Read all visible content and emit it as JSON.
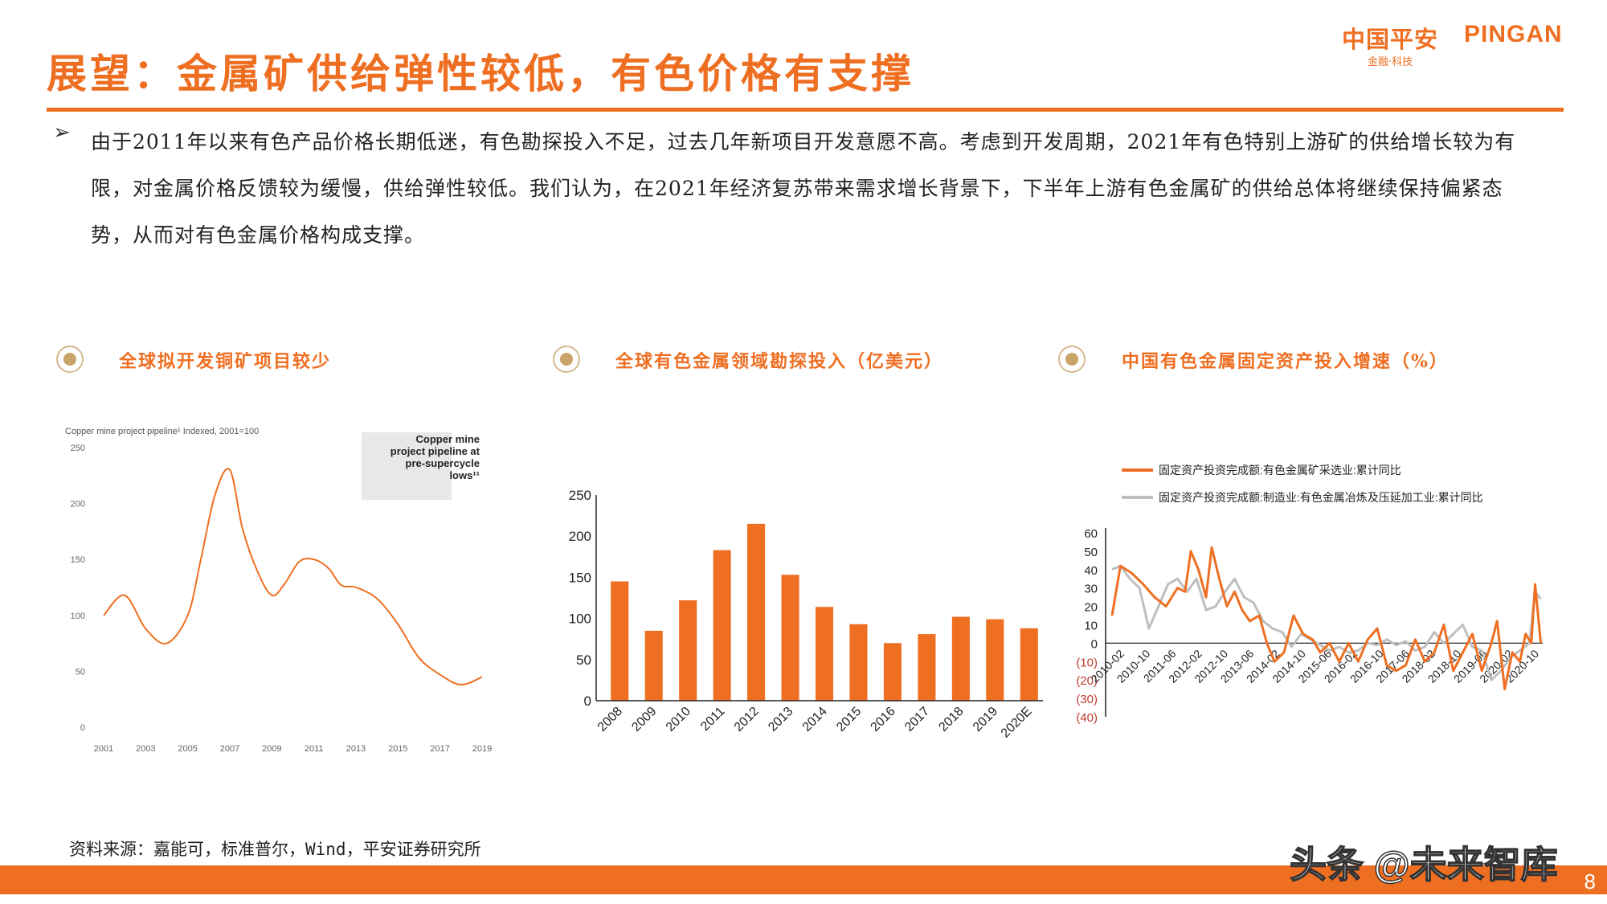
{
  "header": {
    "title": "展望：金属矿供给弹性较低，有色价格有支撑",
    "logo_cn": "中国平安",
    "logo_en": "PINGAN",
    "logo_sub": "金融·科技"
  },
  "bullet": {
    "marker": "➢",
    "text": "由于2011年以来有色产品价格长期低迷，有色勘探投入不足，过去几年新项目开发意愿不高。考虑到开发周期，2021年有色特别上游矿的供给增长较为有限，对金属价格反馈较为缓慢，供给弹性较低。我们认为，在2021年经济复苏带来需求增长背景下，下半年上游有色金属矿的供给总体将继续保持偏紧态势，从而对有色金属价格构成支撑。"
  },
  "sections": [
    {
      "title": "全球拟开发铜矿项目较少"
    },
    {
      "title": "全球有色金属领域勘探投入（亿美元）"
    },
    {
      "title": "中国有色金属固定资产投入增速（%）"
    }
  ],
  "source": "资料来源：嘉能可，标准普尔，Wind，平安证券研究所",
  "page_number": "8",
  "watermark": "头条 @未来智库",
  "colors": {
    "accent": "#ef6f22",
    "gray_series": "#bfbfbf"
  },
  "chart_data": [
    {
      "type": "line",
      "title": "Copper mine project pipeline¹ Indexed, 2001=100",
      "annotation": [
        "Copper mine",
        "project pipeline at",
        "pre-supercycle",
        "lows¹¹"
      ],
      "x_ticks": [
        "2001",
        "2003",
        "2005",
        "2007",
        "2009",
        "2011",
        "2013",
        "2015",
        "2017",
        "2019"
      ],
      "y_ticks": [
        "0",
        "50",
        "100",
        "150",
        "200",
        "250"
      ],
      "ylim": [
        0,
        250
      ],
      "xlim": [
        2001,
        2019
      ],
      "series": [
        {
          "x": [
            2001,
            2002,
            2003,
            2004,
            2005,
            2005.6,
            2006.3,
            2007,
            2007.6,
            2008.3,
            2009,
            2009.6,
            2010.3,
            2011,
            2011.7,
            2012.3,
            2013,
            2014,
            2015,
            2016,
            2017,
            2018,
            2019
          ],
          "y": [
            100,
            118,
            88,
            75,
            100,
            148,
            208,
            230,
            178,
            140,
            118,
            128,
            148,
            150,
            142,
            127,
            125,
            115,
            92,
            62,
            47,
            38,
            45
          ]
        }
      ]
    },
    {
      "type": "bar",
      "categories": [
        "2008",
        "2009",
        "2010",
        "2011",
        "2012",
        "2013",
        "2014",
        "2015",
        "2016",
        "2017",
        "2018",
        "2019",
        "2020E"
      ],
      "values": [
        145,
        85,
        122,
        183,
        215,
        153,
        114,
        93,
        70,
        81,
        102,
        99,
        88
      ],
      "ylim": [
        0,
        250
      ],
      "y_ticks": [
        "0",
        "50",
        "100",
        "150",
        "200",
        "250"
      ]
    },
    {
      "type": "line",
      "ylim": [
        -40,
        60
      ],
      "y_ticks": [
        "60",
        "50",
        "40",
        "30",
        "20",
        "10",
        "0",
        "(10)",
        "(20)",
        "(30)",
        "(40)"
      ],
      "x_ticks": [
        "2010-02",
        "2010-10",
        "2011-06",
        "2012-02",
        "2012-10",
        "2013-06",
        "2014-02",
        "2014-10",
        "2015-06",
        "2016-02",
        "2016-10",
        "2017-06",
        "2018-02",
        "2018-10",
        "2019-06",
        "2020-02",
        "2020-10"
      ],
      "series": [
        {
          "name": "固定资产投资完成额:有色金属矿采选业:累计同比",
          "color": "#ef6f22",
          "x": [
            2010.08,
            2010.3,
            2010.6,
            2010.9,
            2011.2,
            2011.5,
            2011.8,
            2012.0,
            2012.15,
            2012.35,
            2012.55,
            2012.7,
            2012.9,
            2013.1,
            2013.3,
            2013.5,
            2013.7,
            2013.95,
            2014.15,
            2014.35,
            2014.6,
            2014.85,
            2015.1,
            2015.35,
            2015.55,
            2015.8,
            2016.05,
            2016.3,
            2016.55,
            2016.8,
            2017.05,
            2017.3,
            2017.55,
            2017.8,
            2018.05,
            2018.3,
            2018.55,
            2018.8,
            2019.05,
            2019.3,
            2019.55,
            2019.8,
            2020.05,
            2020.2,
            2020.4,
            2020.6,
            2020.8,
            2020.95,
            2021.1,
            2021.2,
            2021.35
          ],
          "y": [
            15,
            42,
            38,
            32,
            25,
            20,
            30,
            28,
            50,
            40,
            25,
            52,
            35,
            20,
            28,
            18,
            12,
            15,
            0,
            -10,
            -5,
            15,
            5,
            2,
            -5,
            0,
            -10,
            0,
            -10,
            2,
            8,
            -12,
            -15,
            -12,
            2,
            -10,
            -5,
            10,
            -15,
            -5,
            5,
            -15,
            0,
            12,
            -25,
            -5,
            -10,
            5,
            0,
            32,
            0
          ]
        },
        {
          "name": "固定资产投资完成额:制造业:有色金属冶炼及压延加工业:累计同比",
          "color": "#bfbfbf",
          "x": [
            2010.08,
            2010.3,
            2010.55,
            2010.8,
            2011.05,
            2011.3,
            2011.55,
            2011.8,
            2012.05,
            2012.3,
            2012.55,
            2012.8,
            2013.05,
            2013.3,
            2013.55,
            2013.8,
            2014.05,
            2014.3,
            2014.55,
            2014.8,
            2015.05,
            2015.3,
            2015.55,
            2015.8,
            2016.05,
            2016.3,
            2016.55,
            2016.8,
            2017.05,
            2017.3,
            2017.55,
            2017.8,
            2018.05,
            2018.3,
            2018.55,
            2018.8,
            2019.05,
            2019.3,
            2019.55,
            2019.8,
            2020.05,
            2020.3,
            2020.55,
            2020.8,
            2021.05,
            2021.2,
            2021.35
          ],
          "y": [
            40,
            42,
            35,
            30,
            8,
            20,
            32,
            35,
            28,
            35,
            18,
            20,
            28,
            35,
            25,
            22,
            12,
            8,
            6,
            -2,
            5,
            2,
            -1,
            -4,
            -2,
            -5,
            -4,
            0,
            -1,
            2,
            -1,
            1,
            -4,
            -2,
            6,
            0,
            5,
            10,
            -2,
            -4,
            -20,
            -15,
            -8,
            -4,
            0,
            28,
            24
          ]
        }
      ]
    }
  ]
}
